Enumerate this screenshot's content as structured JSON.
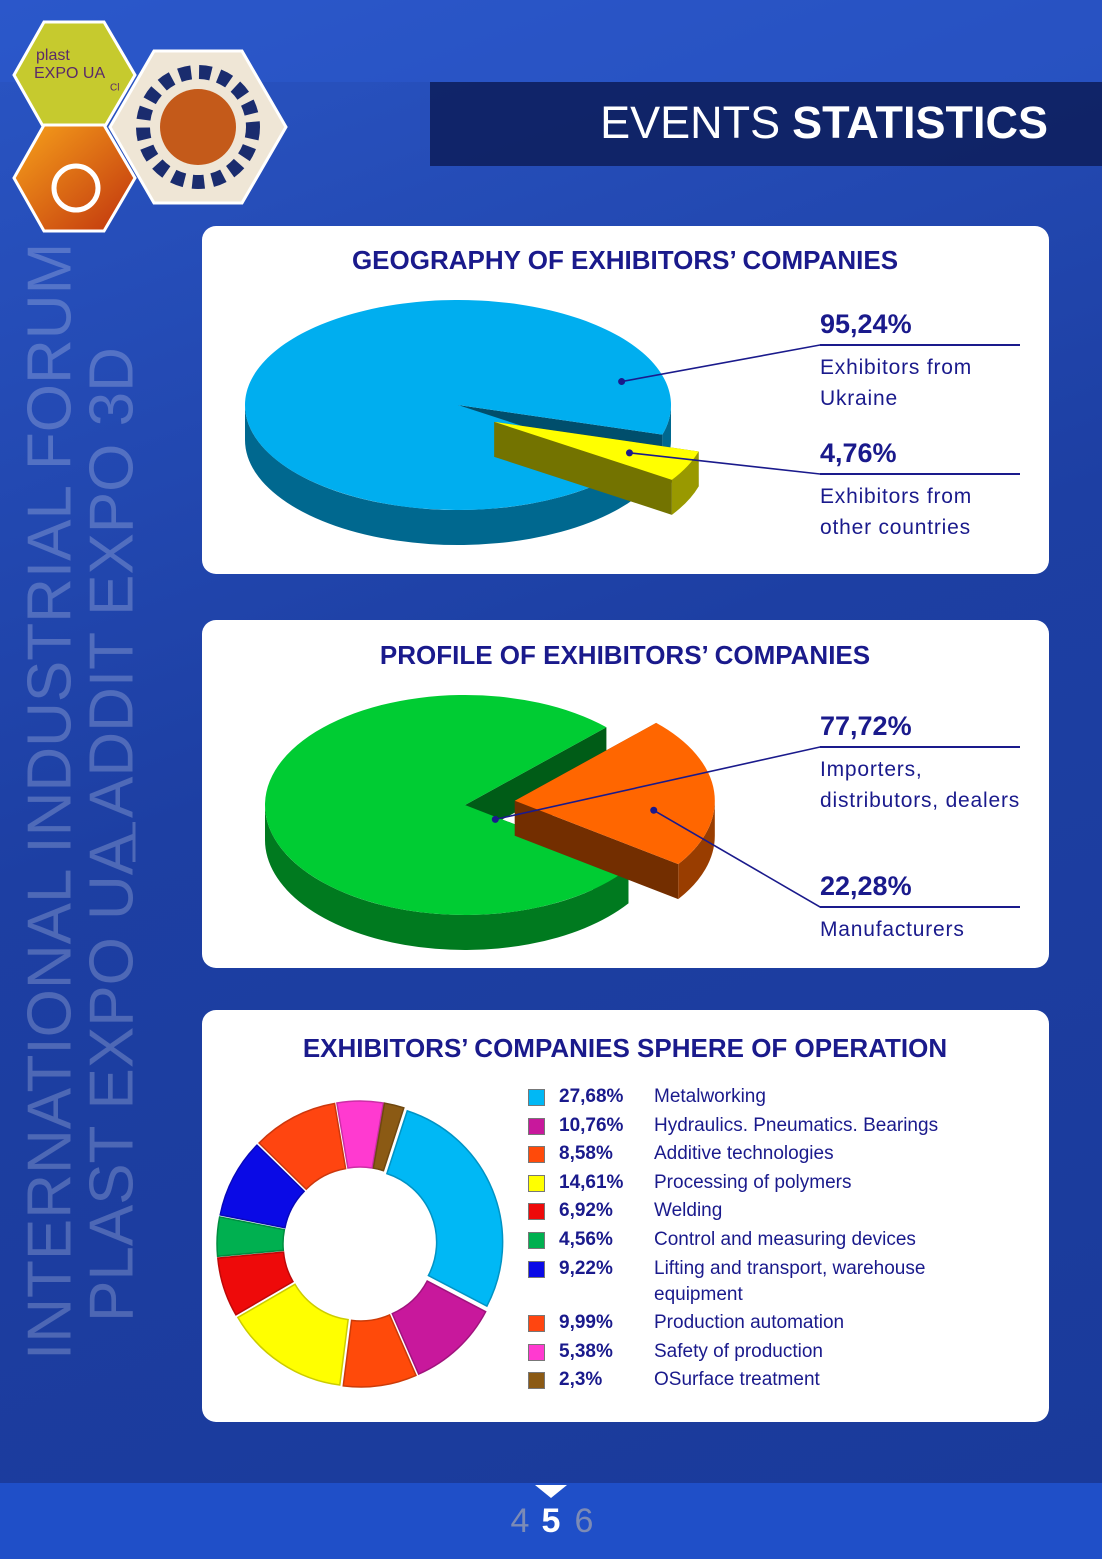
{
  "header": {
    "title_light": "EVENTS",
    "title_bold": "STATISTICS"
  },
  "logo": {
    "line1": "plast",
    "line2": "EXPO UA",
    "line3": "Cl"
  },
  "side_text": [
    "INTERNATIONAL INDUSTRIAL FORUM",
    "PLAST EXPO UA",
    "ADDIT EXPO 3D"
  ],
  "chart_data": [
    {
      "type": "pie",
      "title": "GEOGRAPHY OF EXHIBITORS’ COMPANIES",
      "categories": [
        "Exhibitors from Ukraine",
        "Exhibitors from other countries"
      ],
      "values": [
        95.24,
        4.76
      ],
      "value_labels": [
        "95,24%",
        "4,76%"
      ],
      "colors": [
        "#00aeef",
        "#ffff00"
      ]
    },
    {
      "type": "pie",
      "title": "PROFILE OF EXHIBITORS’ COMPANIES",
      "categories": [
        "Importers, distributors, dealers",
        "Manufacturers"
      ],
      "values": [
        77.72,
        22.28
      ],
      "value_labels": [
        "77,72%",
        "22,28%"
      ],
      "colors": [
        "#00cc33",
        "#ff6600"
      ]
    },
    {
      "type": "donut",
      "title": "EXHIBITORS’ COMPANIES SPHERE OF OPERATION",
      "categories": [
        "Metalworking",
        "Hydraulics. Pneumatics. Bearings",
        "Additive technologies",
        "Processing of polymers",
        "Welding",
        "Control and measuring devices",
        "Lifting and transport, warehouse equipment",
        "Production automation",
        "Safety of production",
        "OSurface treatment"
      ],
      "values": [
        27.68,
        10.76,
        8.58,
        14.61,
        6.92,
        4.56,
        9.22,
        9.99,
        5.38,
        2.3
      ],
      "value_labels": [
        "27,68%",
        "10,76%",
        "8,58%",
        "14,61%",
        "6,92%",
        "4,56%",
        "9,22%",
        "9,99%",
        "5,38%",
        "2,3%"
      ],
      "colors": [
        "#00b8f5",
        "#c8189c",
        "#ff4a0a",
        "#ffff00",
        "#ee0a0a",
        "#00b050",
        "#0a0ae6",
        "#ff4510",
        "#ff3ad0",
        "#8b5a14"
      ]
    }
  ],
  "pagination": {
    "previous": "4",
    "current": "5",
    "next": "6"
  }
}
